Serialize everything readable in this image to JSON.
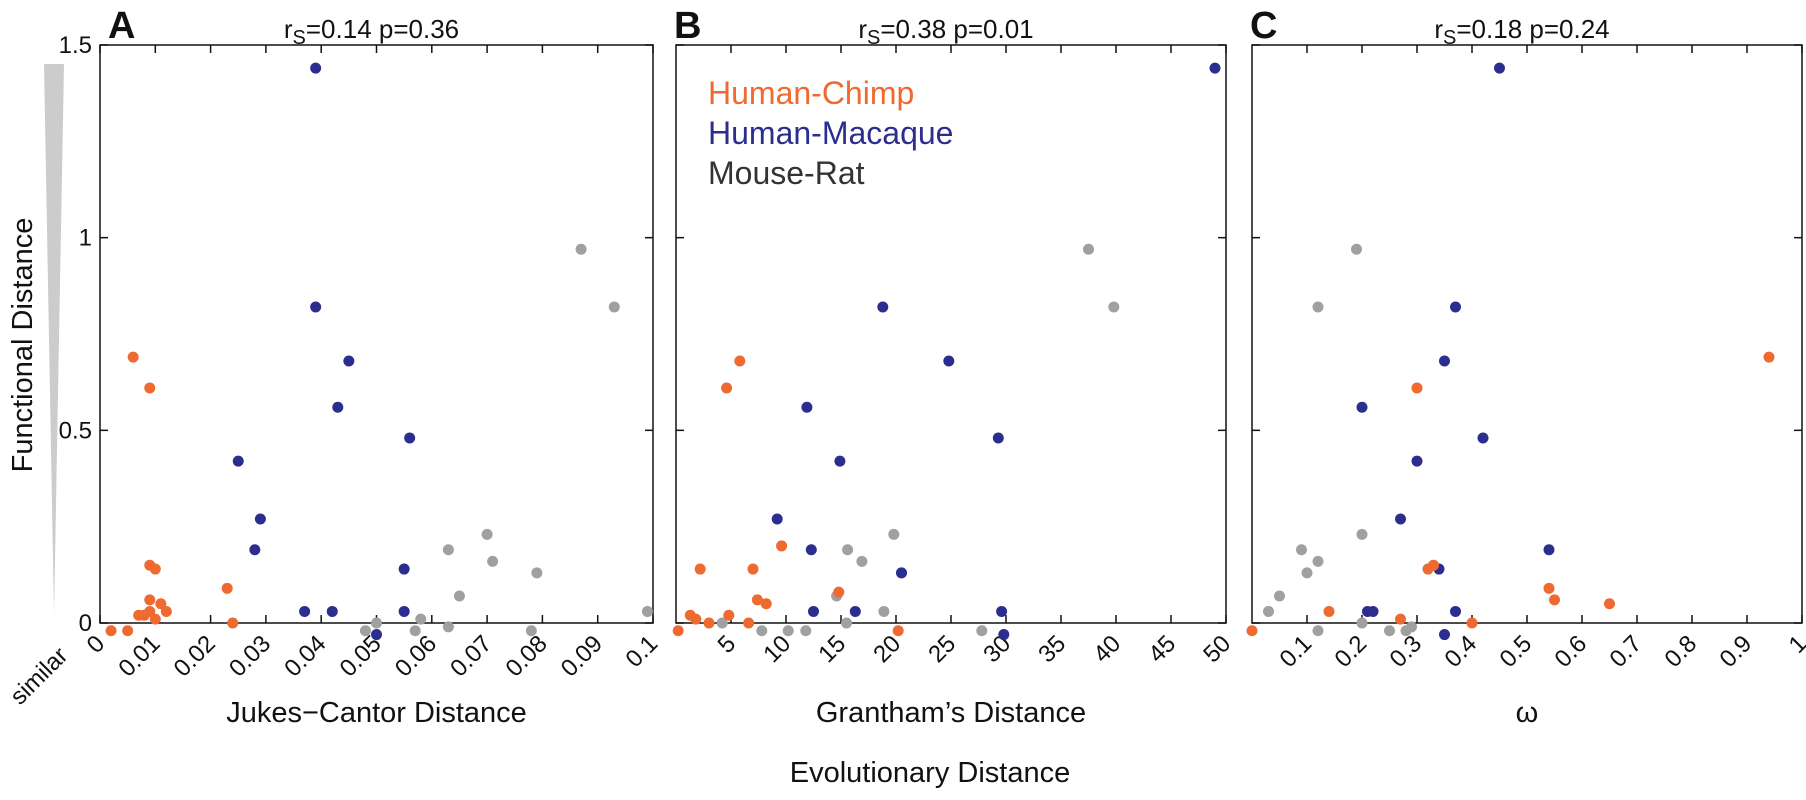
{
  "figure": {
    "y_label": "Functional Distance",
    "x_label": "Evolutionary Distance",
    "similar_label": "similar",
    "legend": [
      {
        "label": "Human-Chimp",
        "color": "#ee6a30"
      },
      {
        "label": "Human-Macaque",
        "color": "#2b2e8f"
      },
      {
        "label": "Mouse-Rat",
        "color": "#333333"
      }
    ],
    "point_colors": {
      "Human-Chimp": "#ee6a30",
      "Human-Macaque": "#2b2e8f",
      "Mouse-Rat": "#a0a0a0"
    }
  },
  "chart_data": [
    {
      "type": "scatter",
      "panel": "A",
      "stat_rs_prefix": "r",
      "stat_rs_sub": "S",
      "stat_rs_value": "=0.14",
      "stat_p": "p=0.36",
      "xlabel": "Jukes−Cantor Distance",
      "xlim": [
        0,
        0.1
      ],
      "ylim": [
        0,
        1.5
      ],
      "xticks": [
        0,
        0.01,
        0.02,
        0.03,
        0.04,
        0.05,
        0.06,
        0.07,
        0.08,
        0.09,
        0.1
      ],
      "xtick_labels": [
        "0",
        "0.01",
        "0.02",
        "0.03",
        "0.04",
        "0.05",
        "0.06",
        "0.07",
        "0.08",
        "0.09",
        "0.1"
      ],
      "yticks": [
        0,
        0.5,
        1,
        1.5
      ],
      "ytick_labels": [
        "0",
        "0.5",
        "1",
        "1.5"
      ],
      "series": [
        {
          "name": "Human-Chimp",
          "points": [
            [
              0.002,
              -0.02
            ],
            [
              0.005,
              -0.02
            ],
            [
              0.006,
              0.69
            ],
            [
              0.007,
              0.02
            ],
            [
              0.008,
              0.02
            ],
            [
              0.009,
              0.03
            ],
            [
              0.009,
              0.06
            ],
            [
              0.009,
              0.61
            ],
            [
              0.009,
              0.15
            ],
            [
              0.01,
              0.14
            ],
            [
              0.01,
              0.01
            ],
            [
              0.011,
              0.05
            ],
            [
              0.012,
              0.03
            ],
            [
              0.023,
              0.09
            ],
            [
              0.024,
              0.0
            ]
          ]
        },
        {
          "name": "Human-Macaque",
          "points": [
            [
              0.025,
              0.42
            ],
            [
              0.028,
              0.19
            ],
            [
              0.029,
              0.27
            ],
            [
              0.037,
              0.03
            ],
            [
              0.039,
              1.44
            ],
            [
              0.039,
              0.82
            ],
            [
              0.042,
              0.03
            ],
            [
              0.043,
              0.56
            ],
            [
              0.045,
              0.68
            ],
            [
              0.05,
              -0.03
            ],
            [
              0.055,
              0.14
            ],
            [
              0.055,
              0.03
            ],
            [
              0.056,
              0.48
            ]
          ]
        },
        {
          "name": "Mouse-Rat",
          "points": [
            [
              0.048,
              -0.02
            ],
            [
              0.05,
              0.0
            ],
            [
              0.057,
              -0.02
            ],
            [
              0.058,
              0.01
            ],
            [
              0.063,
              0.19
            ],
            [
              0.063,
              -0.01
            ],
            [
              0.065,
              0.07
            ],
            [
              0.07,
              0.23
            ],
            [
              0.071,
              0.16
            ],
            [
              0.078,
              -0.02
            ],
            [
              0.079,
              0.13
            ],
            [
              0.087,
              0.97
            ],
            [
              0.093,
              0.82
            ],
            [
              0.099,
              0.03
            ]
          ]
        }
      ]
    },
    {
      "type": "scatter",
      "panel": "B",
      "stat_rs_prefix": "r",
      "stat_rs_sub": "S",
      "stat_rs_value": "=0.38",
      "stat_p": "p=0.01",
      "xlabel": "Grantham’s Distance",
      "xlim": [
        0,
        50
      ],
      "ylim": [
        0,
        1.5
      ],
      "xticks": [
        5,
        10,
        15,
        20,
        25,
        30,
        35,
        40,
        45,
        50
      ],
      "xtick_labels": [
        "5",
        "10",
        "15",
        "20",
        "25",
        "30",
        "35",
        "40",
        "45",
        "50"
      ],
      "yticks": [
        0,
        0.5,
        1,
        1.5
      ],
      "ytick_labels": [
        "",
        "",
        "",
        ""
      ],
      "series": [
        {
          "name": "Human-Chimp",
          "points": [
            [
              0.2,
              -0.02
            ],
            [
              1.3,
              0.02
            ],
            [
              1.8,
              0.01
            ],
            [
              2.2,
              0.14
            ],
            [
              3.0,
              0.0
            ],
            [
              4.6,
              0.61
            ],
            [
              4.8,
              0.02
            ],
            [
              5.8,
              0.68
            ],
            [
              6.6,
              0.0
            ],
            [
              7.0,
              0.14
            ],
            [
              7.4,
              0.06
            ],
            [
              8.2,
              0.05
            ],
            [
              9.6,
              0.2
            ],
            [
              14.8,
              0.08
            ],
            [
              20.2,
              -0.02
            ]
          ]
        },
        {
          "name": "Human-Macaque",
          "points": [
            [
              9.2,
              0.27
            ],
            [
              11.9,
              0.56
            ],
            [
              12.3,
              0.19
            ],
            [
              12.5,
              0.03
            ],
            [
              14.9,
              0.42
            ],
            [
              16.3,
              0.03
            ],
            [
              18.8,
              0.82
            ],
            [
              20.5,
              0.13
            ],
            [
              24.8,
              0.68
            ],
            [
              29.3,
              0.48
            ],
            [
              29.6,
              0.03
            ],
            [
              29.8,
              -0.03
            ],
            [
              49.0,
              1.44
            ]
          ]
        },
        {
          "name": "Mouse-Rat",
          "points": [
            [
              4.2,
              0.0
            ],
            [
              7.8,
              -0.02
            ],
            [
              10.2,
              -0.02
            ],
            [
              11.8,
              -0.02
            ],
            [
              14.6,
              0.07
            ],
            [
              15.5,
              0.0
            ],
            [
              15.6,
              0.19
            ],
            [
              16.9,
              0.16
            ],
            [
              18.9,
              0.03
            ],
            [
              19.8,
              0.23
            ],
            [
              20.5,
              0.13
            ],
            [
              27.8,
              -0.02
            ],
            [
              37.5,
              0.97
            ],
            [
              39.8,
              0.82
            ]
          ]
        }
      ]
    },
    {
      "type": "scatter",
      "panel": "C",
      "stat_rs_prefix": "r",
      "stat_rs_sub": "S",
      "stat_rs_value": "=0.18",
      "stat_p": "p=0.24",
      "xlabel": "ω",
      "xlim": [
        0,
        1
      ],
      "ylim": [
        0,
        1.5
      ],
      "xticks": [
        0.1,
        0.2,
        0.3,
        0.4,
        0.5,
        0.6,
        0.7,
        0.8,
        0.9,
        1
      ],
      "xtick_labels": [
        "0.1",
        "0.2",
        "0.3",
        "0.4",
        "0.5",
        "0.6",
        "0.7",
        "0.8",
        "0.9",
        "1"
      ],
      "yticks": [
        0,
        0.5,
        1,
        1.5
      ],
      "ytick_labels": [
        "",
        "",
        "",
        ""
      ],
      "series": [
        {
          "name": "Human-Chimp",
          "points": [
            [
              0.0,
              -0.02
            ],
            [
              0.14,
              0.03
            ],
            [
              0.27,
              0.01
            ],
            [
              0.3,
              0.61
            ],
            [
              0.32,
              0.14
            ],
            [
              0.33,
              0.15
            ],
            [
              0.4,
              0.0
            ],
            [
              0.54,
              0.09
            ],
            [
              0.55,
              0.06
            ],
            [
              0.65,
              0.05
            ],
            [
              0.94,
              0.69
            ]
          ]
        },
        {
          "name": "Human-Macaque",
          "points": [
            [
              0.2,
              0.56
            ],
            [
              0.21,
              0.03
            ],
            [
              0.22,
              0.03
            ],
            [
              0.27,
              0.27
            ],
            [
              0.3,
              0.42
            ],
            [
              0.34,
              0.14
            ],
            [
              0.35,
              0.68
            ],
            [
              0.35,
              -0.03
            ],
            [
              0.37,
              0.03
            ],
            [
              0.37,
              0.82
            ],
            [
              0.42,
              0.48
            ],
            [
              0.45,
              1.44
            ],
            [
              0.54,
              0.19
            ]
          ]
        },
        {
          "name": "Mouse-Rat",
          "points": [
            [
              0.03,
              0.03
            ],
            [
              0.05,
              0.07
            ],
            [
              0.09,
              0.19
            ],
            [
              0.1,
              0.13
            ],
            [
              0.12,
              0.16
            ],
            [
              0.12,
              0.82
            ],
            [
              0.12,
              -0.02
            ],
            [
              0.19,
              0.97
            ],
            [
              0.2,
              0.23
            ],
            [
              0.2,
              0.0
            ],
            [
              0.25,
              -0.02
            ],
            [
              0.28,
              -0.02
            ],
            [
              0.29,
              -0.01
            ]
          ]
        }
      ]
    }
  ]
}
